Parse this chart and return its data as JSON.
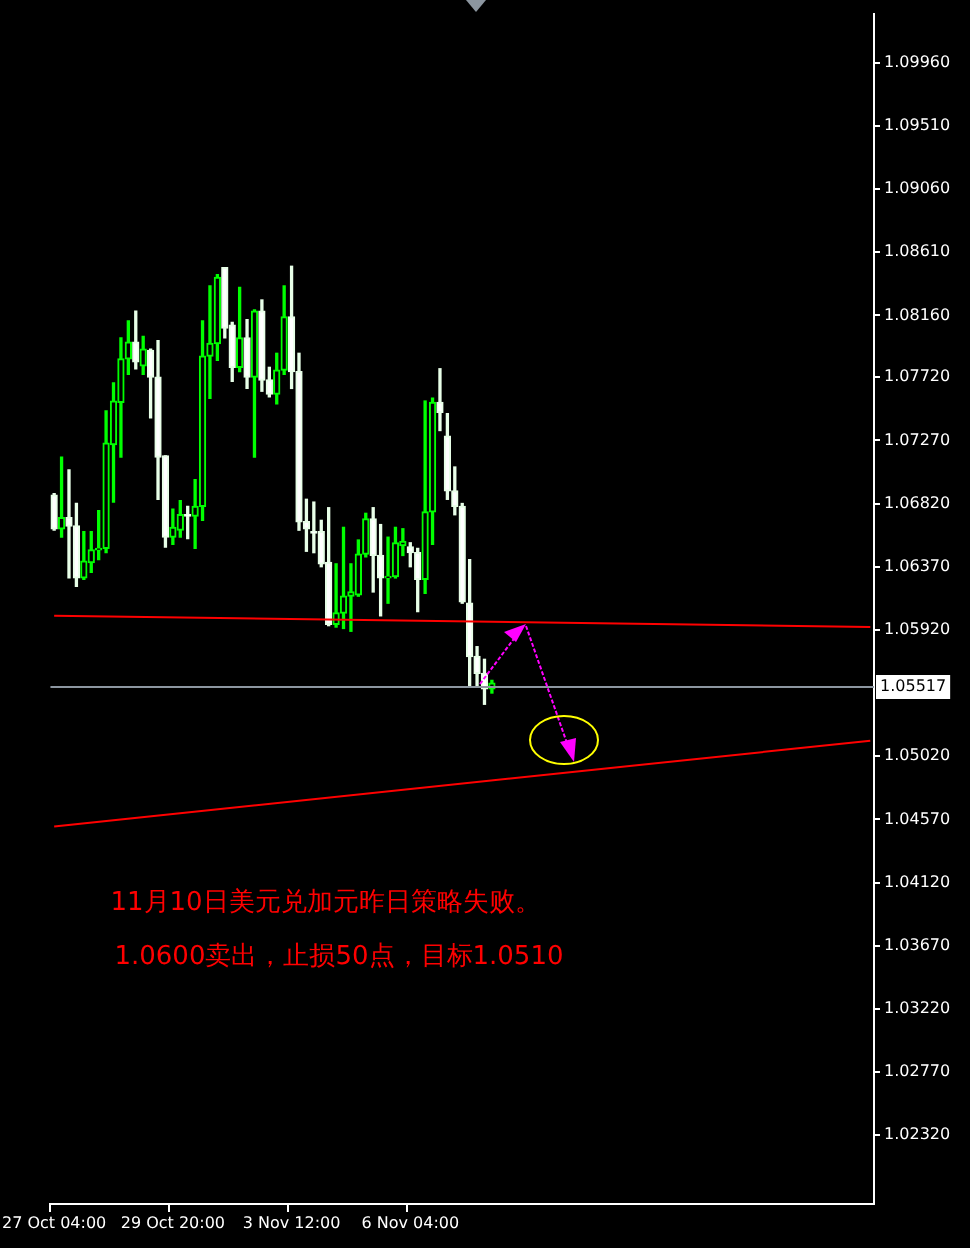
{
  "chart_data": {
    "type": "candlestick",
    "categories": [
      "27 Oct 04:00",
      null,
      null,
      null,
      null,
      null,
      null,
      null,
      null,
      null,
      null,
      null,
      null,
      null,
      null,
      null,
      "29 Oct 20:00",
      null,
      null,
      null,
      null,
      null,
      null,
      null,
      null,
      null,
      null,
      null,
      null,
      null,
      null,
      null,
      "3 Nov 12:00",
      null,
      null,
      null,
      null,
      null,
      null,
      null,
      null,
      null,
      null,
      null,
      null,
      null,
      null,
      null,
      "6 Nov 04:00",
      null,
      null,
      null,
      null,
      null,
      null,
      null,
      null,
      null,
      null,
      null,
      null,
      null,
      null,
      null,
      null,
      null,
      null,
      null,
      null,
      null,
      null,
      null,
      null,
      null,
      null,
      null,
      null,
      null,
      null,
      null,
      null,
      null,
      null,
      null,
      null,
      null,
      null,
      null,
      null,
      null,
      null,
      null,
      null,
      null,
      null,
      null,
      null,
      null,
      null,
      null,
      null,
      null,
      null,
      null,
      null,
      null,
      null,
      null,
      null,
      null,
      null
    ],
    "ohlc": [
      [
        1.0688,
        1.0689,
        1.0663,
        1.0664
      ],
      [
        1.0664,
        1.0715,
        1.0658,
        1.0672
      ],
      [
        1.0672,
        1.0706,
        1.0629,
        1.0666
      ],
      [
        1.0666,
        1.0682,
        1.0623,
        1.0629
      ],
      [
        1.0629,
        1.0662,
        1.0628,
        1.0641
      ],
      [
        1.064,
        1.0662,
        1.0633,
        1.0649
      ],
      [
        1.0649,
        1.0677,
        1.0642,
        1.065
      ],
      [
        1.065,
        1.0748,
        1.0647,
        1.0725
      ],
      [
        1.0724,
        1.0768,
        1.0683,
        1.0755
      ],
      [
        1.0754,
        1.08,
        1.0715,
        1.0785
      ],
      [
        1.0785,
        1.0812,
        1.0774,
        1.0797
      ],
      [
        1.0797,
        1.0819,
        1.0778,
        1.0783
      ],
      [
        1.078,
        1.0801,
        1.0774,
        1.0792
      ],
      [
        1.0791,
        1.0792,
        1.0743,
        1.0772
      ],
      [
        1.0772,
        1.0798,
        1.0685,
        1.0715
      ],
      [
        1.0716,
        1.0716,
        1.0651,
        1.0658
      ],
      [
        1.0658,
        1.0678,
        1.0653,
        1.0665
      ],
      [
        1.0663,
        1.0684,
        1.0658,
        1.0674
      ],
      [
        1.0674,
        1.068,
        1.0657,
        1.0673
      ],
      [
        1.0673,
        1.0699,
        1.065,
        1.068
      ],
      [
        1.068,
        1.0812,
        1.067,
        1.0787
      ],
      [
        1.0787,
        1.0837,
        1.0757,
        1.0796
      ],
      [
        1.0796,
        1.0845,
        1.0784,
        1.0843
      ],
      [
        1.085,
        1.085,
        1.08,
        1.0807
      ],
      [
        1.0809,
        1.0811,
        1.0769,
        1.0779
      ],
      [
        1.0779,
        1.0836,
        1.0776,
        1.08
      ],
      [
        1.08,
        1.0813,
        1.0764,
        1.0772
      ],
      [
        1.0772,
        1.082,
        1.0715,
        1.0819
      ],
      [
        1.0819,
        1.0827,
        1.0762,
        1.077
      ],
      [
        1.077,
        1.0779,
        1.0758,
        1.076
      ],
      [
        1.076,
        1.0789,
        1.0753,
        1.0777
      ],
      [
        1.0777,
        1.0837,
        1.0774,
        1.0815
      ],
      [
        1.0815,
        1.0851,
        1.0764,
        1.0776
      ],
      [
        1.0776,
        1.0789,
        1.0663,
        1.0669
      ],
      [
        1.0669,
        1.0685,
        1.0648,
        1.0664
      ],
      [
        1.0662,
        1.0683,
        1.0647,
        1.0661
      ],
      [
        1.0662,
        1.067,
        1.0637,
        1.0639
      ],
      [
        1.064,
        1.0679,
        1.0595,
        1.0596
      ],
      [
        1.0596,
        1.0639,
        1.0594,
        1.0604
      ],
      [
        1.0604,
        1.0665,
        1.0593,
        1.0616
      ],
      [
        1.0616,
        1.0639,
        1.0591,
        1.0619
      ],
      [
        1.0617,
        1.0656,
        1.0616,
        1.0646
      ],
      [
        1.0646,
        1.0675,
        1.0644,
        1.0671
      ],
      [
        1.0671,
        1.0679,
        1.0619,
        1.0645
      ],
      [
        1.0645,
        1.0667,
        1.0602,
        1.0629
      ],
      [
        1.0629,
        1.0658,
        1.0611,
        1.063
      ],
      [
        1.063,
        1.0665,
        1.0629,
        1.0654
      ],
      [
        1.0652,
        1.0664,
        1.0645,
        1.0655
      ],
      [
        1.0651,
        1.0654,
        1.0637,
        1.0647
      ],
      [
        1.0647,
        1.065,
        1.0605,
        1.0628
      ],
      [
        1.0628,
        1.0755,
        1.0618,
        1.0676
      ],
      [
        1.0676,
        1.0757,
        1.0653,
        1.0754
      ],
      [
        1.0754,
        1.0778,
        1.0734,
        1.0747
      ],
      [
        1.073,
        1.0746,
        1.0685,
        1.0691
      ],
      [
        1.0691,
        1.0708,
        1.0674,
        1.068
      ],
      [
        1.068,
        1.0682,
        1.0611,
        1.0612
      ],
      [
        1.0611,
        1.0642,
        1.0552,
        1.0573
      ],
      [
        1.0573,
        1.058,
        1.0552,
        1.0561
      ],
      [
        1.0561,
        1.0571,
        1.0539,
        1.055
      ],
      [
        1.055,
        1.0556,
        1.0547,
        1.0554
      ],
      null,
      null,
      null,
      null,
      null,
      null,
      null,
      null,
      null,
      null,
      null,
      null,
      null,
      null,
      null,
      null,
      null,
      null,
      null,
      null,
      null,
      null,
      null,
      null,
      null,
      null,
      null,
      null,
      null,
      null,
      null,
      null,
      null,
      null,
      null,
      null,
      null,
      null,
      null,
      null,
      null,
      null,
      null,
      null,
      null,
      null,
      null,
      null,
      null,
      null,
      null
    ],
    "series": [
      {
        "type": "line",
        "color": "#ff0000",
        "values": [
          1.0602,
          null,
          null,
          null,
          null,
          null,
          null,
          null,
          null,
          null,
          null,
          null,
          null,
          null,
          null,
          null,
          null,
          null,
          null,
          null,
          null,
          null,
          null,
          null,
          null,
          null,
          null,
          null,
          null,
          null,
          null,
          null,
          null,
          null,
          null,
          null,
          null,
          null,
          null,
          null,
          null,
          null,
          null,
          null,
          null,
          null,
          null,
          null,
          null,
          null,
          null,
          null,
          null,
          null,
          null,
          null,
          null,
          null,
          null,
          null,
          null,
          null,
          null,
          null,
          null,
          null,
          null,
          null,
          null,
          null,
          null,
          null,
          null,
          null,
          null,
          null,
          null,
          null,
          null,
          null,
          null,
          null,
          null,
          null,
          null,
          null,
          null,
          null,
          null,
          null,
          null,
          null,
          null,
          null,
          null,
          null,
          null,
          null,
          null,
          null,
          null,
          null,
          null,
          null,
          null,
          null,
          null,
          null,
          null,
          null,
          1.0594
        ]
      },
      {
        "type": "line",
        "color": "#ff0000",
        "values": [
          1.0452,
          null,
          null,
          null,
          null,
          null,
          null,
          null,
          null,
          null,
          null,
          null,
          null,
          null,
          null,
          null,
          null,
          null,
          null,
          null,
          null,
          null,
          null,
          null,
          null,
          null,
          null,
          null,
          null,
          null,
          null,
          null,
          null,
          null,
          null,
          null,
          null,
          null,
          null,
          null,
          null,
          null,
          null,
          null,
          null,
          null,
          null,
          null,
          null,
          null,
          null,
          null,
          null,
          null,
          null,
          null,
          null,
          null,
          null,
          null,
          null,
          null,
          null,
          null,
          null,
          null,
          null,
          null,
          null,
          null,
          null,
          null,
          null,
          null,
          null,
          null,
          null,
          null,
          null,
          null,
          null,
          null,
          null,
          null,
          null,
          null,
          null,
          null,
          null,
          null,
          null,
          null,
          null,
          null,
          null,
          null,
          null,
          null,
          null,
          null,
          null,
          null,
          null,
          null,
          null,
          null,
          null,
          null,
          null,
          null,
          1.0513
        ]
      }
    ],
    "ylim": [
      1.0183,
      1.1031
    ],
    "yticks": [
      {
        "value": 1.0996,
        "label": "1.09960"
      },
      {
        "value": 1.0951,
        "label": "1.09510"
      },
      {
        "value": 1.0906,
        "label": "1.09060"
      },
      {
        "value": 1.0861,
        "label": "1.08610"
      },
      {
        "value": 1.0816,
        "label": "1.08160"
      },
      {
        "value": 1.0772,
        "label": "1.07720"
      },
      {
        "value": 1.0727,
        "label": "1.07270"
      },
      {
        "value": 1.0682,
        "label": "1.06820"
      },
      {
        "value": 1.0637,
        "label": "1.06370"
      },
      {
        "value": 1.0592,
        "label": "1.05920"
      },
      {
        "value": 1.0502,
        "label": "1.05020"
      },
      {
        "value": 1.0457,
        "label": "1.04570"
      },
      {
        "value": 1.0412,
        "label": "1.04120"
      },
      {
        "value": 1.0367,
        "label": "1.03670"
      },
      {
        "value": 1.0322,
        "label": "1.03220"
      },
      {
        "value": 1.0277,
        "label": "1.02770"
      },
      {
        "value": 1.0232,
        "label": "1.02320"
      }
    ],
    "ref_lines": [
      {
        "axis": "y",
        "value": 1.05517,
        "label": "1.05517",
        "color": "#8c96a0"
      }
    ],
    "annotations": [
      "11月10日美元兑加元昨日策略失败。",
      "1.0600卖出，止损50点，目标1.0510"
    ]
  }
}
